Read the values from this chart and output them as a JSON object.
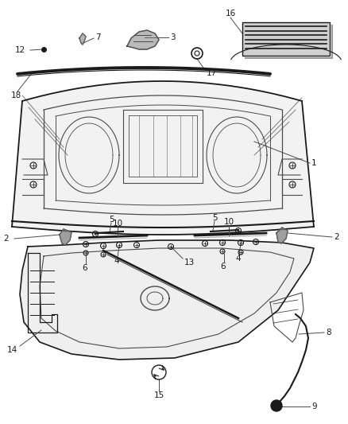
{
  "bg_color": "#ffffff",
  "lc": "#4a4a4a",
  "dc": "#1a1a1a",
  "lbl": "#1a1a1a",
  "figsize": [
    4.38,
    5.33
  ],
  "dpi": 100,
  "label_fs": 7.5
}
